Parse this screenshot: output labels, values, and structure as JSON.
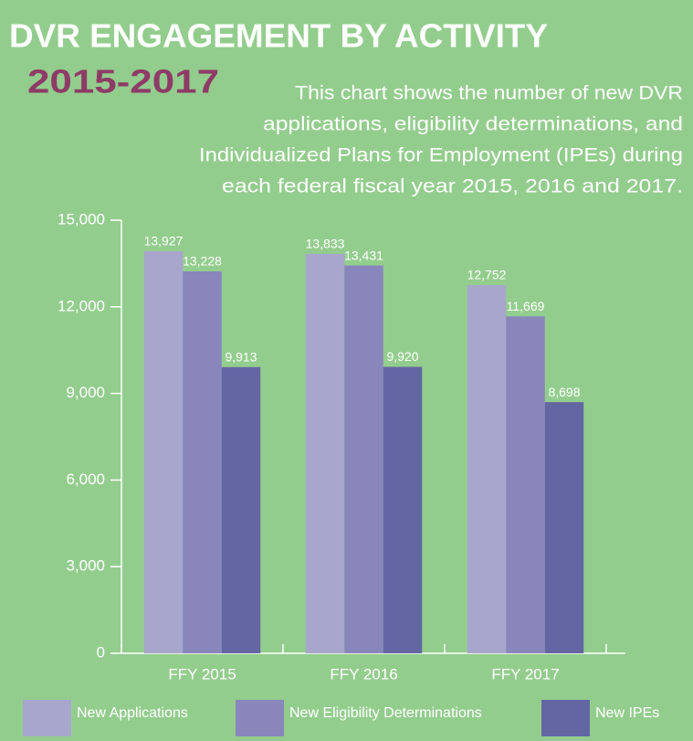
{
  "chart_data": {
    "type": "bar",
    "title": "DVR ENGAGEMENT BY ACTIVITY",
    "subtitle": "2015-2017",
    "description": [
      "This chart shows the number of new DVR",
      "applications, eligibility determinations, and",
      "Individualized Plans for Employment (IPEs) during",
      "each federal fiscal year 2015, 2016 and 2017."
    ],
    "categories": [
      "FFY 2015",
      "FFY 2016",
      "FFY 2017"
    ],
    "series": [
      {
        "name": "New Applications",
        "color": "#a8a6cc",
        "values": [
          13927,
          13833,
          12752
        ],
        "value_labels": [
          "13,927",
          "13,833",
          "12,752"
        ]
      },
      {
        "name": "New Eligibility Determinations",
        "color": "#8886bb",
        "values": [
          13228,
          13431,
          11669
        ],
        "value_labels": [
          "13,228",
          "13,431",
          "11,669"
        ]
      },
      {
        "name": "New IPEs",
        "color": "#6466a4",
        "values": [
          9913,
          9920,
          8698
        ],
        "value_labels": [
          "9,913",
          "9,920",
          "8,698"
        ]
      }
    ],
    "ylim": [
      0,
      15000
    ],
    "yticks": [
      0,
      {
        "value": 3000,
        "label": "3,000"
      },
      {
        "value": 6000,
        "label": "6,000"
      },
      {
        "value": 9000,
        "label": "9,000"
      },
      {
        "value": 12000,
        "label": "12,000"
      },
      {
        "value": 15000,
        "label": "15,000"
      }
    ],
    "legend": "bottom"
  }
}
